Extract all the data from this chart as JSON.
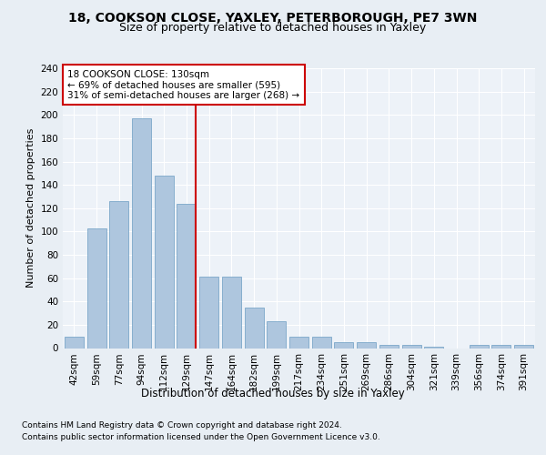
{
  "title1": "18, COOKSON CLOSE, YAXLEY, PETERBOROUGH, PE7 3WN",
  "title2": "Size of property relative to detached houses in Yaxley",
  "xlabel": "Distribution of detached houses by size in Yaxley",
  "ylabel": "Number of detached properties",
  "categories": [
    "42sqm",
    "59sqm",
    "77sqm",
    "94sqm",
    "112sqm",
    "129sqm",
    "147sqm",
    "164sqm",
    "182sqm",
    "199sqm",
    "217sqm",
    "234sqm",
    "251sqm",
    "269sqm",
    "286sqm",
    "304sqm",
    "321sqm",
    "339sqm",
    "356sqm",
    "374sqm",
    "391sqm"
  ],
  "values": [
    10,
    103,
    126,
    197,
    148,
    124,
    61,
    61,
    35,
    23,
    10,
    10,
    5,
    5,
    3,
    3,
    1,
    0,
    3,
    3,
    3
  ],
  "bar_color": "#aec6de",
  "bar_edge_color": "#6b9dc2",
  "vline_color": "#cc0000",
  "annotation_text": "18 COOKSON CLOSE: 130sqm\n← 69% of detached houses are smaller (595)\n31% of semi-detached houses are larger (268) →",
  "annotation_box_color": "#ffffff",
  "annotation_box_edge": "#cc0000",
  "ylim": [
    0,
    240
  ],
  "yticks": [
    0,
    20,
    40,
    60,
    80,
    100,
    120,
    140,
    160,
    180,
    200,
    220,
    240
  ],
  "footer1": "Contains HM Land Registry data © Crown copyright and database right 2024.",
  "footer2": "Contains public sector information licensed under the Open Government Licence v3.0.",
  "bg_color": "#e8eef4",
  "plot_bg_color": "#edf2f8",
  "title1_fontsize": 10,
  "title2_fontsize": 9,
  "xlabel_fontsize": 8.5,
  "ylabel_fontsize": 8,
  "tick_fontsize": 7.5,
  "footer_fontsize": 6.5,
  "annotation_fontsize": 7.5
}
